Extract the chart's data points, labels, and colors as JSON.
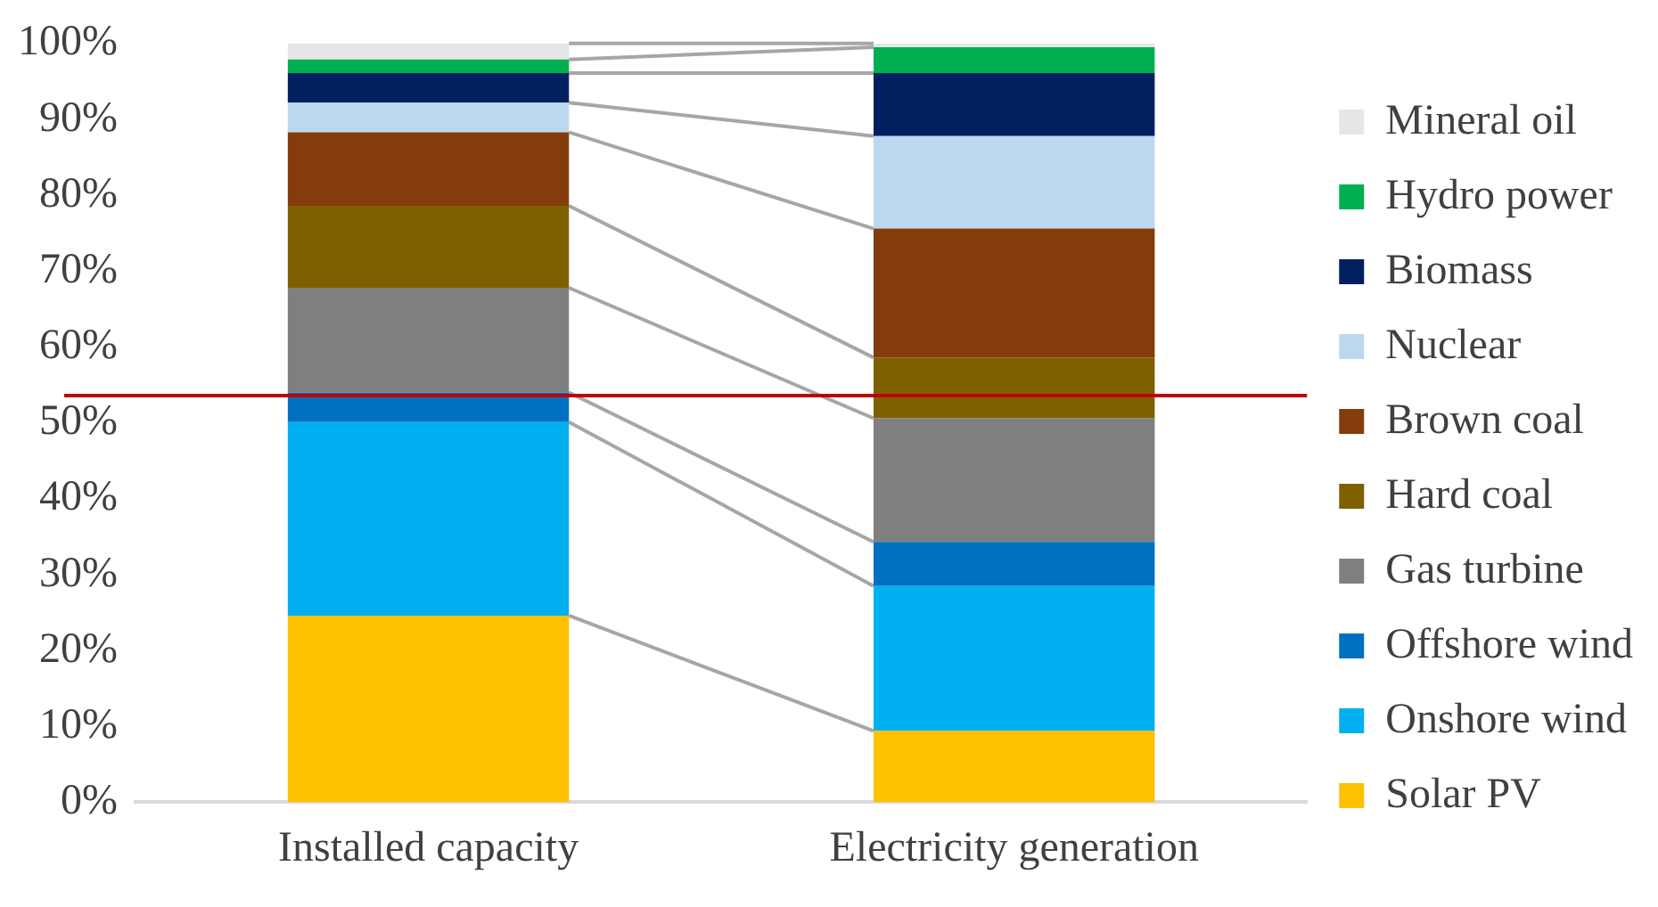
{
  "chart_data": {
    "type": "bar",
    "stacked": true,
    "categories": [
      "Installed capacity",
      "Electricity generation"
    ],
    "series": [
      {
        "name": "Solar PV",
        "color": "#ffc000",
        "values": [
          24.6,
          9.4
        ]
      },
      {
        "name": "Onshore wind",
        "color": "#00b0f0",
        "values": [
          25.5,
          19.1
        ]
      },
      {
        "name": "Offshore wind",
        "color": "#0070c0",
        "values": [
          3.9,
          5.8
        ]
      },
      {
        "name": "Gas turbine",
        "color": "#7f7f7f",
        "values": [
          13.8,
          16.3
        ]
      },
      {
        "name": "Hard coal",
        "color": "#7f6000",
        "values": [
          10.8,
          8.0
        ]
      },
      {
        "name": "Brown coal",
        "color": "#843c0c",
        "values": [
          9.7,
          17.0
        ]
      },
      {
        "name": "Nuclear",
        "color": "#bdd7ee",
        "values": [
          3.9,
          12.2
        ]
      },
      {
        "name": "Biomass",
        "color": "#002060",
        "values": [
          3.9,
          8.3
        ]
      },
      {
        "name": "Hydro power",
        "color": "#00b050",
        "values": [
          1.8,
          3.4
        ]
      },
      {
        "name": "Mineral oil",
        "color": "#e7e6e6",
        "values": [
          2.1,
          0.5
        ]
      }
    ],
    "ylim": [
      0,
      100
    ],
    "yticks": [
      {
        "value": 0,
        "label": "0%"
      },
      {
        "value": 10,
        "label": "10%"
      },
      {
        "value": 20,
        "label": "20%"
      },
      {
        "value": 30,
        "label": "30%"
      },
      {
        "value": 40,
        "label": "40%"
      },
      {
        "value": 50,
        "label": "50%"
      },
      {
        "value": 60,
        "label": "60%"
      },
      {
        "value": 70,
        "label": "70%"
      },
      {
        "value": 80,
        "label": "80%"
      },
      {
        "value": 90,
        "label": "90%"
      },
      {
        "value": 100,
        "label": "100%"
      }
    ],
    "ref_lines": [
      {
        "axis": "y",
        "value": 53.6,
        "color": "#c00000"
      }
    ],
    "grid": false,
    "legend": "right"
  }
}
